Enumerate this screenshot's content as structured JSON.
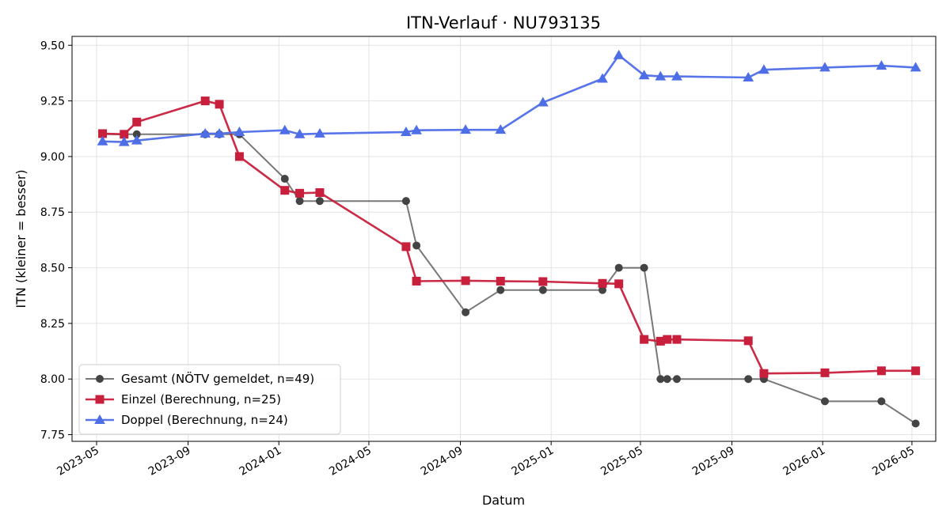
{
  "chart_data": {
    "type": "line",
    "title": "ITN-Verlauf · NU793135",
    "xlabel": "Datum",
    "ylabel": "ITN  (kleiner = besser)",
    "xlim": [
      "2023-03-29",
      "2026-06-02"
    ],
    "ylim": [
      7.72,
      9.54
    ],
    "x_ticks": [
      "2023-05-01",
      "2023-09-01",
      "2024-01-01",
      "2024-05-01",
      "2024-09-01",
      "2025-01-01",
      "2025-05-01",
      "2025-09-01",
      "2026-01-01",
      "2026-05-01"
    ],
    "x_tick_labels": [
      "2023-05",
      "2023-09",
      "2024-01",
      "2024-05",
      "2024-09",
      "2025-01",
      "2025-05",
      "2025-09",
      "2026-01",
      "2026-05"
    ],
    "y_ticks": [
      7.75,
      8.0,
      8.25,
      8.5,
      8.75,
      9.0,
      9.25,
      9.5
    ],
    "y_tick_labels": [
      "7.75",
      "8.00",
      "8.25",
      "8.50",
      "8.75",
      "9.00",
      "9.25",
      "9.50"
    ],
    "grid": true,
    "legend_position": "lower-left",
    "series": [
      {
        "name": "Gesamt (NÖTV gemeldet, n=49)",
        "color": "#444444",
        "marker": "circle",
        "points": [
          {
            "x": "2023-05-09",
            "y": 9.1
          },
          {
            "x": "2023-06-07",
            "y": 9.1
          },
          {
            "x": "2023-06-24",
            "y": 9.1
          },
          {
            "x": "2023-09-24",
            "y": 9.1
          },
          {
            "x": "2023-10-13",
            "y": 9.1
          },
          {
            "x": "2023-11-09",
            "y": 9.1
          },
          {
            "x": "2024-01-09",
            "y": 8.9
          },
          {
            "x": "2024-01-29",
            "y": 8.8
          },
          {
            "x": "2024-02-25",
            "y": 8.8
          },
          {
            "x": "2024-06-20",
            "y": 8.8
          },
          {
            "x": "2024-07-04",
            "y": 8.6
          },
          {
            "x": "2024-09-08",
            "y": 8.3
          },
          {
            "x": "2024-10-25",
            "y": 8.4
          },
          {
            "x": "2024-12-21",
            "y": 8.4
          },
          {
            "x": "2025-03-11",
            "y": 8.4
          },
          {
            "x": "2025-04-02",
            "y": 8.5
          },
          {
            "x": "2025-05-06",
            "y": 8.5
          },
          {
            "x": "2025-05-28",
            "y": 8.0
          },
          {
            "x": "2025-06-06",
            "y": 8.0
          },
          {
            "x": "2025-06-19",
            "y": 8.0
          },
          {
            "x": "2025-09-23",
            "y": 8.0
          },
          {
            "x": "2025-10-14",
            "y": 8.0
          },
          {
            "x": "2026-01-04",
            "y": 7.9
          },
          {
            "x": "2026-03-21",
            "y": 7.9
          },
          {
            "x": "2026-05-06",
            "y": 7.8
          }
        ]
      },
      {
        "name": "Einzel (Berechnung, n=25)",
        "color": "#c8203c",
        "marker": "square",
        "points": [
          {
            "x": "2023-05-09",
            "y": 9.103
          },
          {
            "x": "2023-06-07",
            "y": 9.1
          },
          {
            "x": "2023-06-24",
            "y": 9.155
          },
          {
            "x": "2023-09-24",
            "y": 9.25
          },
          {
            "x": "2023-10-13",
            "y": 9.235
          },
          {
            "x": "2023-11-09",
            "y": 9.0
          },
          {
            "x": "2024-01-09",
            "y": 8.848
          },
          {
            "x": "2024-01-29",
            "y": 8.835
          },
          {
            "x": "2024-02-25",
            "y": 8.838
          },
          {
            "x": "2024-06-20",
            "y": 8.595
          },
          {
            "x": "2024-07-04",
            "y": 8.44
          },
          {
            "x": "2024-09-08",
            "y": 8.442
          },
          {
            "x": "2024-10-25",
            "y": 8.44
          },
          {
            "x": "2024-12-21",
            "y": 8.438
          },
          {
            "x": "2025-03-11",
            "y": 8.43
          },
          {
            "x": "2025-04-02",
            "y": 8.428
          },
          {
            "x": "2025-05-06",
            "y": 8.178
          },
          {
            "x": "2025-05-28",
            "y": 8.17
          },
          {
            "x": "2025-06-06",
            "y": 8.178
          },
          {
            "x": "2025-06-19",
            "y": 8.178
          },
          {
            "x": "2025-09-23",
            "y": 8.172
          },
          {
            "x": "2025-10-14",
            "y": 8.025
          },
          {
            "x": "2026-01-04",
            "y": 8.028
          },
          {
            "x": "2026-03-21",
            "y": 8.037
          },
          {
            "x": "2026-05-06",
            "y": 8.037
          }
        ]
      },
      {
        "name": "Doppel (Berechnung, n=24)",
        "color": "#4e6ee8",
        "marker": "triangle",
        "points": [
          {
            "x": "2023-05-09",
            "y": 9.068
          },
          {
            "x": "2023-06-07",
            "y": 9.065
          },
          {
            "x": "2023-06-24",
            "y": 9.072
          },
          {
            "x": "2023-09-24",
            "y": 9.103
          },
          {
            "x": "2023-10-13",
            "y": 9.103
          },
          {
            "x": "2023-11-09",
            "y": 9.11
          },
          {
            "x": "2024-01-09",
            "y": 9.118
          },
          {
            "x": "2024-01-29",
            "y": 9.1
          },
          {
            "x": "2024-02-25",
            "y": 9.103
          },
          {
            "x": "2024-06-20",
            "y": 9.11
          },
          {
            "x": "2024-07-04",
            "y": 9.118
          },
          {
            "x": "2024-09-08",
            "y": 9.12
          },
          {
            "x": "2024-10-25",
            "y": 9.12
          },
          {
            "x": "2024-12-21",
            "y": 9.243
          },
          {
            "x": "2025-03-11",
            "y": 9.35
          },
          {
            "x": "2025-04-02",
            "y": 9.455
          },
          {
            "x": "2025-05-06",
            "y": 9.365
          },
          {
            "x": "2025-05-28",
            "y": 9.36
          },
          {
            "x": "2025-06-19",
            "y": 9.36
          },
          {
            "x": "2025-09-23",
            "y": 9.355
          },
          {
            "x": "2025-10-14",
            "y": 9.39
          },
          {
            "x": "2026-01-04",
            "y": 9.4
          },
          {
            "x": "2026-03-21",
            "y": 9.408
          },
          {
            "x": "2026-05-06",
            "y": 9.4
          }
        ]
      }
    ]
  }
}
